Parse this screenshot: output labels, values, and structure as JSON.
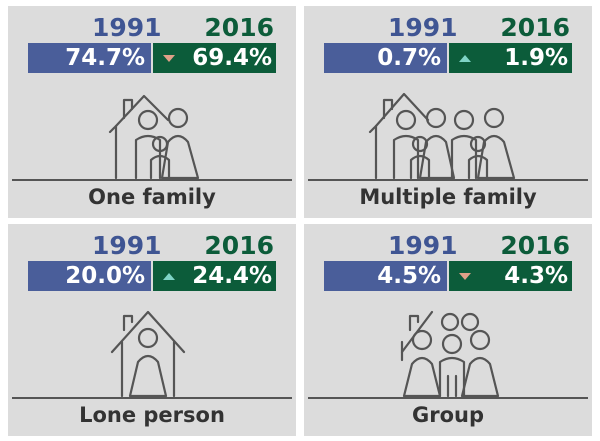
{
  "year_a": "1991",
  "year_b": "2016",
  "colors": {
    "year_a": "#4a5e9a",
    "year_b": "#0c5c3a",
    "arrow_down": "#e0a088",
    "arrow_up": "#7fd4c6",
    "panel": "#dcdcdc"
  },
  "panels": [
    {
      "label": "One family",
      "val_1991": "74.7%",
      "val_2016": "69.4%",
      "trend": "down",
      "icon": "family-house-icon"
    },
    {
      "label": "Multiple family",
      "val_1991": "0.7%",
      "val_2016": "1.9%",
      "trend": "up",
      "icon": "multiple-family-house-icon"
    },
    {
      "label": "Lone person",
      "val_1991": "20.0%",
      "val_2016": "24.4%",
      "trend": "up",
      "icon": "lone-person-house-icon"
    },
    {
      "label": "Group",
      "val_1991": "4.5%",
      "val_2016": "4.3%",
      "trend": "down",
      "icon": "group-house-icon"
    }
  ]
}
